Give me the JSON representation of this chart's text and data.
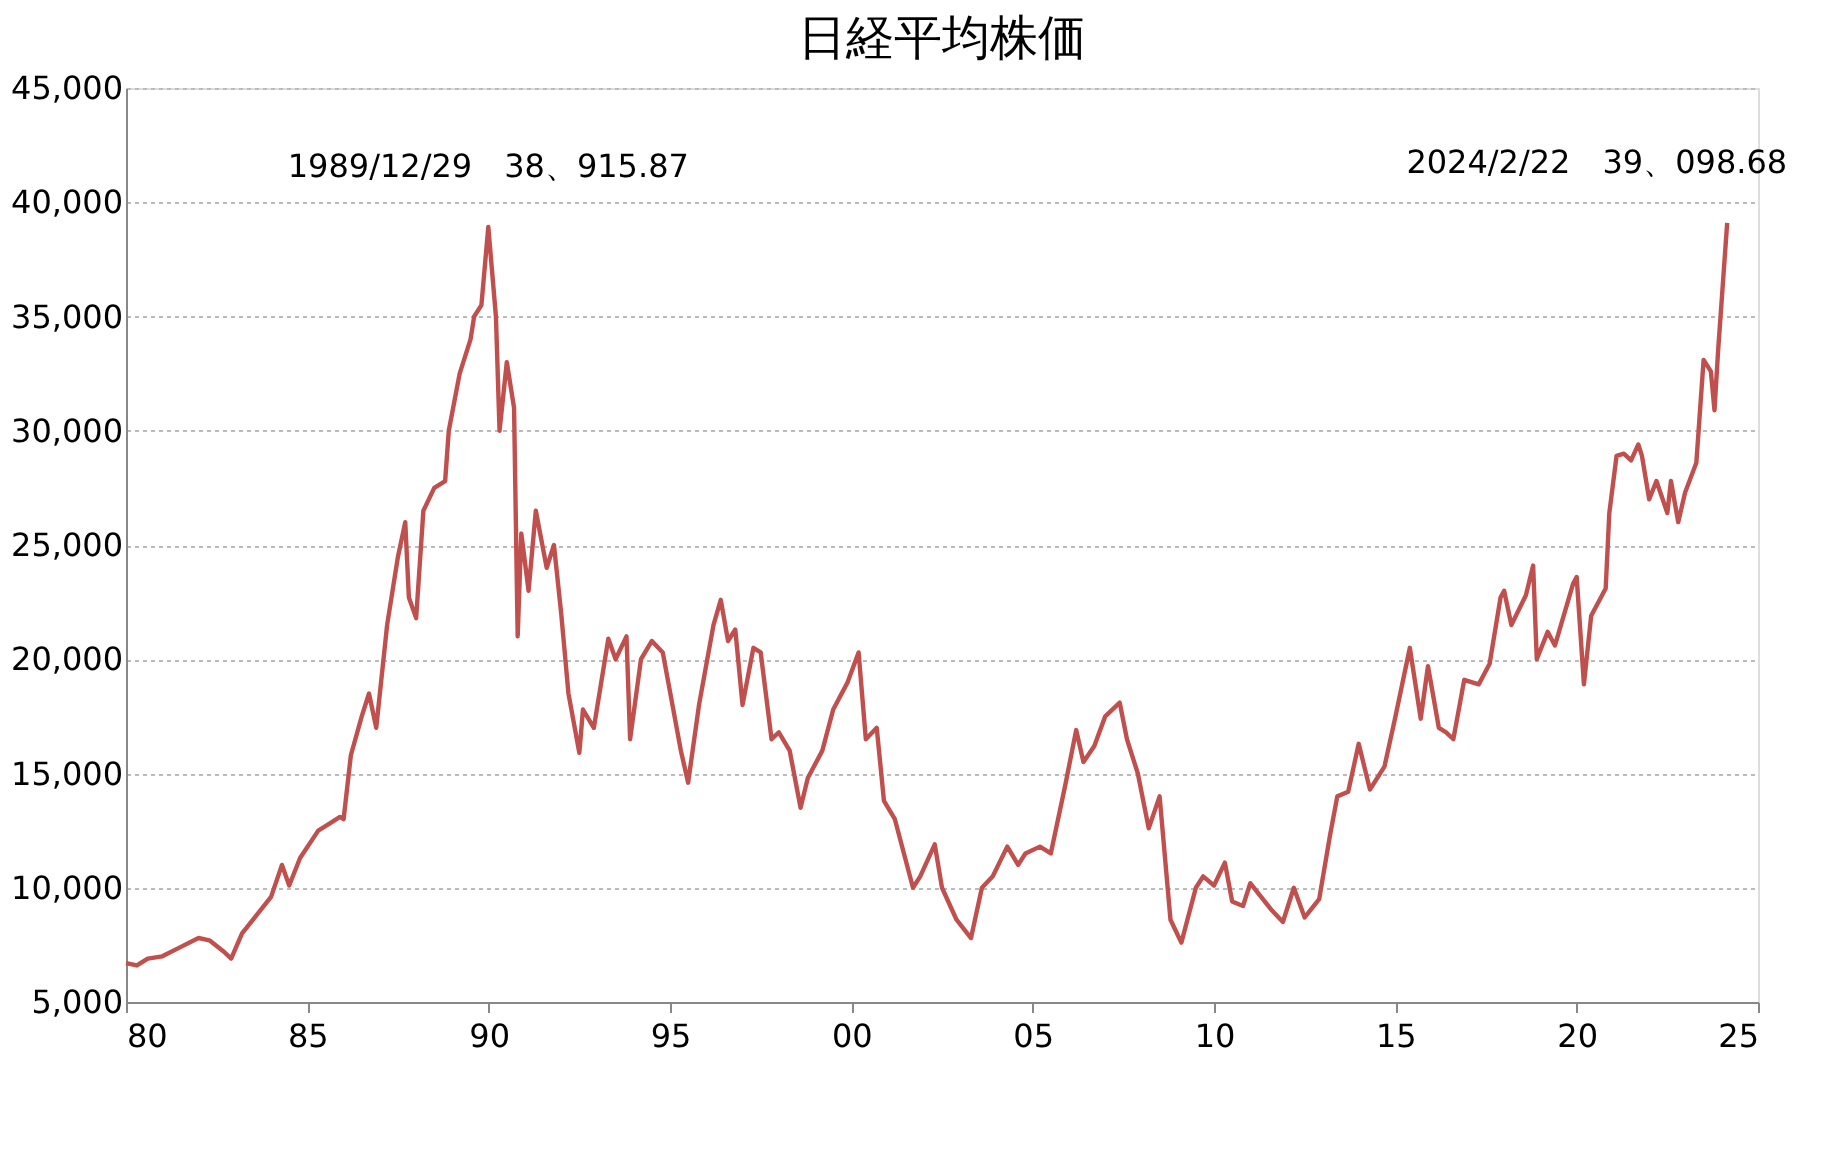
{
  "chart_data": {
    "type": "line",
    "title": "日経平均株価",
    "xlim": [
      1980,
      2025
    ],
    "xticks": [
      {
        "value": 1980,
        "label": "80"
      },
      {
        "value": 1985,
        "label": "85"
      },
      {
        "value": 1990,
        "label": "90"
      },
      {
        "value": 1995,
        "label": "95"
      },
      {
        "value": 2000,
        "label": "00"
      },
      {
        "value": 2005,
        "label": "05"
      },
      {
        "value": 2010,
        "label": "10"
      },
      {
        "value": 2015,
        "label": "15"
      },
      {
        "value": 2020,
        "label": "20"
      },
      {
        "value": 2025,
        "label": "25"
      }
    ],
    "ylim": [
      5000,
      45000
    ],
    "yticks": [
      {
        "value": 5000,
        "label": "5,000"
      },
      {
        "value": 10000,
        "label": "10,000"
      },
      {
        "value": 15000,
        "label": "15,000"
      },
      {
        "value": 20000,
        "label": "20,000"
      },
      {
        "value": 25000,
        "label": "25,000"
      },
      {
        "value": 30000,
        "label": "30,000"
      },
      {
        "value": 35000,
        "label": "35,000"
      },
      {
        "value": 40000,
        "label": "40,000"
      },
      {
        "value": 45000,
        "label": "45,000"
      }
    ],
    "grid": "y",
    "marker": "none",
    "line_style": "solid",
    "series": [
      {
        "color": "#c0504d",
        "x": [
          1980.0,
          1980.3,
          1980.6,
          1981.0,
          1981.5,
          1982.0,
          1982.3,
          1982.7,
          1982.9,
          1983.2,
          1983.6,
          1984.0,
          1984.3,
          1984.5,
          1984.8,
          1985.3,
          1985.6,
          1985.9,
          1986.0,
          1986.2,
          1986.5,
          1986.7,
          1986.9,
          1987.2,
          1987.5,
          1987.7,
          1987.8,
          1988.0,
          1988.2,
          1988.5,
          1988.8,
          1988.9,
          1989.2,
          1989.5,
          1989.6,
          1989.8,
          1989.99,
          1990.2,
          1990.3,
          1990.5,
          1990.7,
          1990.8,
          1990.9,
          1991.1,
          1991.3,
          1991.6,
          1991.8,
          1992.0,
          1992.2,
          1992.5,
          1992.6,
          1992.9,
          1993.3,
          1993.5,
          1993.8,
          1993.9,
          1994.2,
          1994.5,
          1994.8,
          1995.3,
          1995.5,
          1995.8,
          1996.2,
          1996.4,
          1996.6,
          1996.8,
          1997.0,
          1997.3,
          1997.5,
          1997.8,
          1998.0,
          1998.3,
          1998.6,
          1998.8,
          1999.2,
          1999.5,
          1999.9,
          2000.2,
          2000.4,
          2000.7,
          2000.9,
          2001.2,
          2001.7,
          2001.9,
          2002.3,
          2002.5,
          2002.9,
          2003.3,
          2003.6,
          2003.9,
          2004.3,
          2004.6,
          2004.8,
          2005.2,
          2005.5,
          2005.9,
          2006.2,
          2006.4,
          2006.7,
          2007.0,
          2007.4,
          2007.6,
          2007.9,
          2008.2,
          2008.5,
          2008.8,
          2009.1,
          2009.5,
          2009.7,
          2010.0,
          2010.3,
          2010.5,
          2010.8,
          2011.0,
          2011.2,
          2011.6,
          2011.9,
          2012.2,
          2012.5,
          2012.9,
          2013.2,
          2013.4,
          2013.7,
          2013.99,
          2014.3,
          2014.7,
          2014.99,
          2015.4,
          2015.7,
          2015.9,
          2016.2,
          2016.4,
          2016.6,
          2016.9,
          2017.3,
          2017.6,
          2017.9,
          2018.0,
          2018.2,
          2018.6,
          2018.8,
          2018.9,
          2019.2,
          2019.4,
          2019.9,
          2020.0,
          2020.2,
          2020.4,
          2020.8,
          2020.9,
          2021.1,
          2021.3,
          2021.5,
          2021.7,
          2021.8,
          2022.0,
          2022.2,
          2022.5,
          2022.6,
          2022.8,
          2022.99,
          2023.3,
          2023.5,
          2023.7,
          2023.8,
          2023.9,
          2024.15
        ],
        "values": [
          6700,
          6600,
          6900,
          7000,
          7400,
          7800,
          7700,
          7200,
          6900,
          8000,
          8800,
          9600,
          11000,
          10100,
          11300,
          12500,
          12800,
          13100,
          13000,
          15800,
          17500,
          18500,
          17000,
          21500,
          24500,
          26000,
          22700,
          21800,
          26500,
          27500,
          27800,
          30000,
          32500,
          34000,
          35000,
          35500,
          38916,
          35000,
          30000,
          33000,
          31000,
          21000,
          25500,
          23000,
          26500,
          24000,
          25000,
          22000,
          18500,
          15900,
          17800,
          17000,
          20900,
          20000,
          21000,
          16500,
          20000,
          20800,
          20300,
          16000,
          14600,
          18000,
          21500,
          22600,
          20800,
          21300,
          18000,
          20500,
          20300,
          16500,
          16800,
          16000,
          13500,
          14800,
          16000,
          17800,
          19000,
          20300,
          16500,
          17000,
          13800,
          13000,
          10000,
          10500,
          11900,
          10000,
          8600,
          7800,
          10000,
          10500,
          11800,
          11000,
          11500,
          11800,
          11500,
          14500,
          16900,
          15500,
          16200,
          17500,
          18100,
          16500,
          15000,
          12600,
          14000,
          8600,
          7600,
          10000,
          10500,
          10100,
          11100,
          9400,
          9200,
          10200,
          9800,
          9000,
          8500,
          10000,
          8700,
          9500,
          12300,
          14000,
          14200,
          16300,
          14300,
          15300,
          17400,
          20500,
          17400,
          19700,
          17000,
          16800,
          16500,
          19100,
          18900,
          19800,
          22700,
          23000,
          21500,
          22800,
          24100,
          20000,
          21200,
          20600,
          23300,
          23600,
          18900,
          21900,
          23100,
          26400,
          28900,
          29000,
          28700,
          29400,
          28900,
          27000,
          27800,
          26400,
          27800,
          26000,
          27300,
          28600,
          33100,
          32600,
          30900,
          33500,
          39099
        ]
      }
    ],
    "annotations": [
      {
        "text": "1989/12/29　38、915.87",
        "x": 1989.99,
        "y": 38916
      },
      {
        "text": "2024/2/22　39、098.68",
        "x": 2024.15,
        "y": 39099
      }
    ]
  }
}
